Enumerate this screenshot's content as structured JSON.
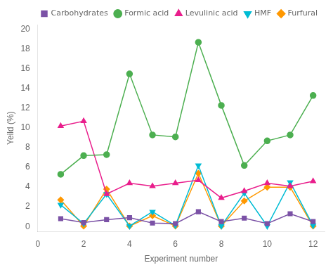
{
  "chart_data": {
    "type": "line",
    "x": [
      1,
      2,
      3,
      4,
      5,
      6,
      7,
      8,
      9,
      10,
      11,
      12
    ],
    "series": [
      {
        "name": "Carbohydrates",
        "color": "#7b52a6",
        "marker": "square",
        "values": [
          0.8,
          0.4,
          0.7,
          0.9,
          0.35,
          0.3,
          1.5,
          0.5,
          0.85,
          0.3,
          1.3,
          0.5
        ]
      },
      {
        "name": "Formic acid",
        "color": "#4caf50",
        "marker": "circle",
        "values": [
          5.3,
          7.2,
          7.3,
          15.5,
          9.3,
          9.1,
          18.7,
          12.3,
          6.2,
          8.7,
          9.3,
          13.3
        ]
      },
      {
        "name": "Levulinic acid",
        "color": "#e91e8c",
        "marker": "triangle_up",
        "values": [
          10.2,
          10.7,
          3.3,
          4.4,
          4.1,
          4.4,
          4.7,
          2.9,
          3.6,
          4.4,
          4.1,
          4.6
        ]
      },
      {
        "name": "HMF",
        "color": "#00bcd4",
        "marker": "triangle_down",
        "values": [
          2.2,
          0.3,
          3.3,
          0.05,
          1.5,
          0.1,
          6.2,
          0.05,
          3.4,
          0.05,
          4.5,
          0.1
        ]
      },
      {
        "name": "Furfural",
        "color": "#ff9800",
        "marker": "diamond",
        "values": [
          2.7,
          0.05,
          3.8,
          0.05,
          1.1,
          0.05,
          5.4,
          0.05,
          2.6,
          4.0,
          4.0,
          0.05
        ]
      }
    ],
    "x_label": "Experiment number",
    "y_label": "Yeild (%)",
    "xlim": [
      0,
      12.5
    ],
    "ylim": [
      -0.5,
      20.5
    ],
    "xticks": [
      0,
      2,
      4,
      6,
      8,
      10,
      12
    ],
    "yticks": [
      0,
      2,
      4,
      6,
      8,
      10,
      12,
      14,
      16,
      18,
      20
    ],
    "grid": false,
    "legend": "upper right"
  }
}
